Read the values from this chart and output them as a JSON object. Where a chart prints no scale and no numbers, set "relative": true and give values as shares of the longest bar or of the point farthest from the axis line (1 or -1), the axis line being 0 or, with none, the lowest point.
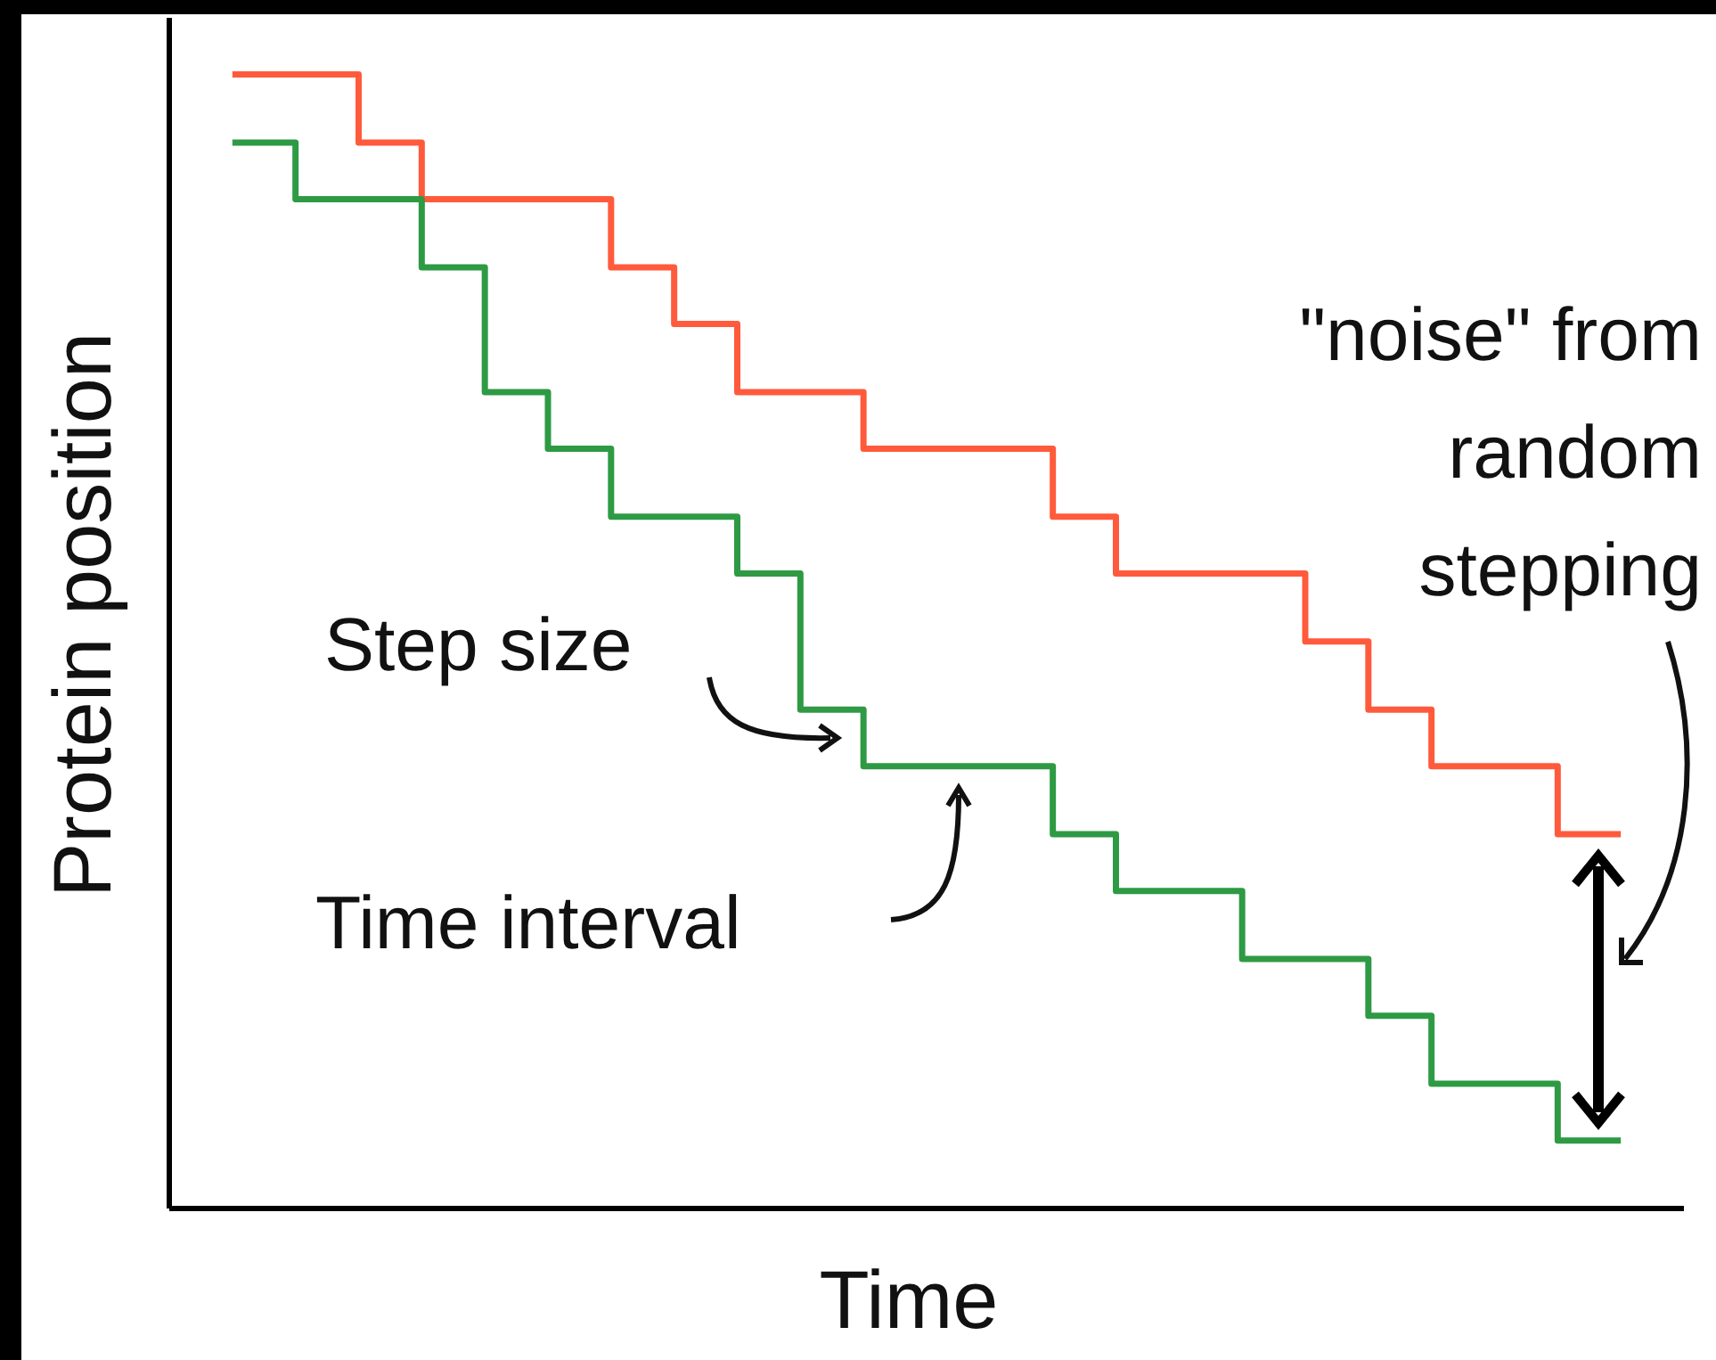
{
  "chart_data": {
    "type": "step",
    "relative": true,
    "xlabel": "Time",
    "ylabel": "Protein position",
    "categories": [
      null,
      null,
      null,
      null,
      null,
      null,
      null,
      null,
      null,
      null,
      null,
      null,
      null,
      null,
      null,
      null,
      null,
      null,
      null,
      null,
      null,
      null,
      null
    ],
    "series": [
      {
        "color": "#ff5a3c",
        "values": [
          1,
          1,
          0.94,
          0.89,
          0.89,
          0.89,
          0.83,
          0.78,
          0.72,
          0.72,
          0.67,
          0.67,
          0.67,
          0.61,
          0.56,
          0.56,
          0.56,
          0.5,
          0.44,
          0.39,
          0.39,
          0.33,
          0.33
        ]
      },
      {
        "color": "#2e9a44",
        "values": [
          0.94,
          0.89,
          0.89,
          0.83,
          0.72,
          0.67,
          0.61,
          0.61,
          0.56,
          0.44,
          0.39,
          0.39,
          0.39,
          0.33,
          0.28,
          0.28,
          0.22,
          0.22,
          0.17,
          0.11,
          0.11,
          0.06,
          0.06
        ]
      }
    ],
    "annotations": [
      "Step size",
      "Time interval",
      "\"noise\" from\nrandom\nstepping"
    ],
    "grid": false,
    "legend": false,
    "marker": "none",
    "line_style": "solid"
  }
}
